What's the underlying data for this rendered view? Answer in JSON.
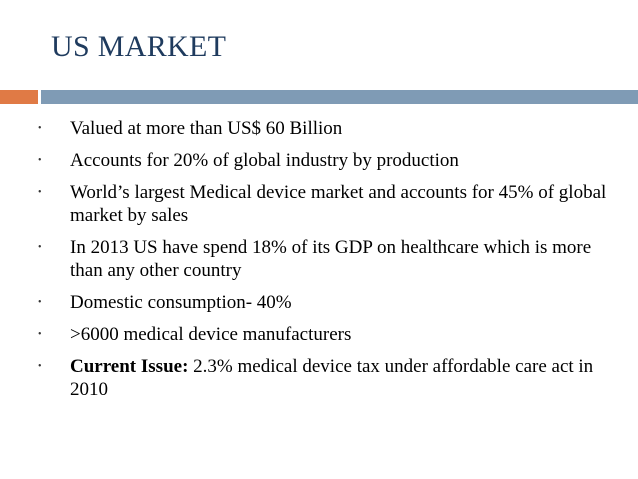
{
  "slide": {
    "title": "US MARKET",
    "accent_color": "#e07a45",
    "rule_color": "#7f9bb5",
    "bullet_glyph": "•",
    "bullets": [
      {
        "lead": "",
        "text": "Valued at more than US$ 60 Billion"
      },
      {
        "lead": "",
        "text": "Accounts for 20% of global industry by production"
      },
      {
        "lead": "",
        "text": "World’s largest Medical device market and accounts for 45% of global market by sales"
      },
      {
        "lead": "",
        "text": "In 2013 US have spend 18% of its GDP on healthcare which is more than any other country"
      },
      {
        "lead": "",
        "text": "Domestic consumption- 40%"
      },
      {
        "lead": "",
        "text": ">6000 medical device manufacturers"
      },
      {
        "lead": "Current Issue:",
        "text": " 2.3% medical device tax under affordable care act in 2010"
      }
    ]
  }
}
